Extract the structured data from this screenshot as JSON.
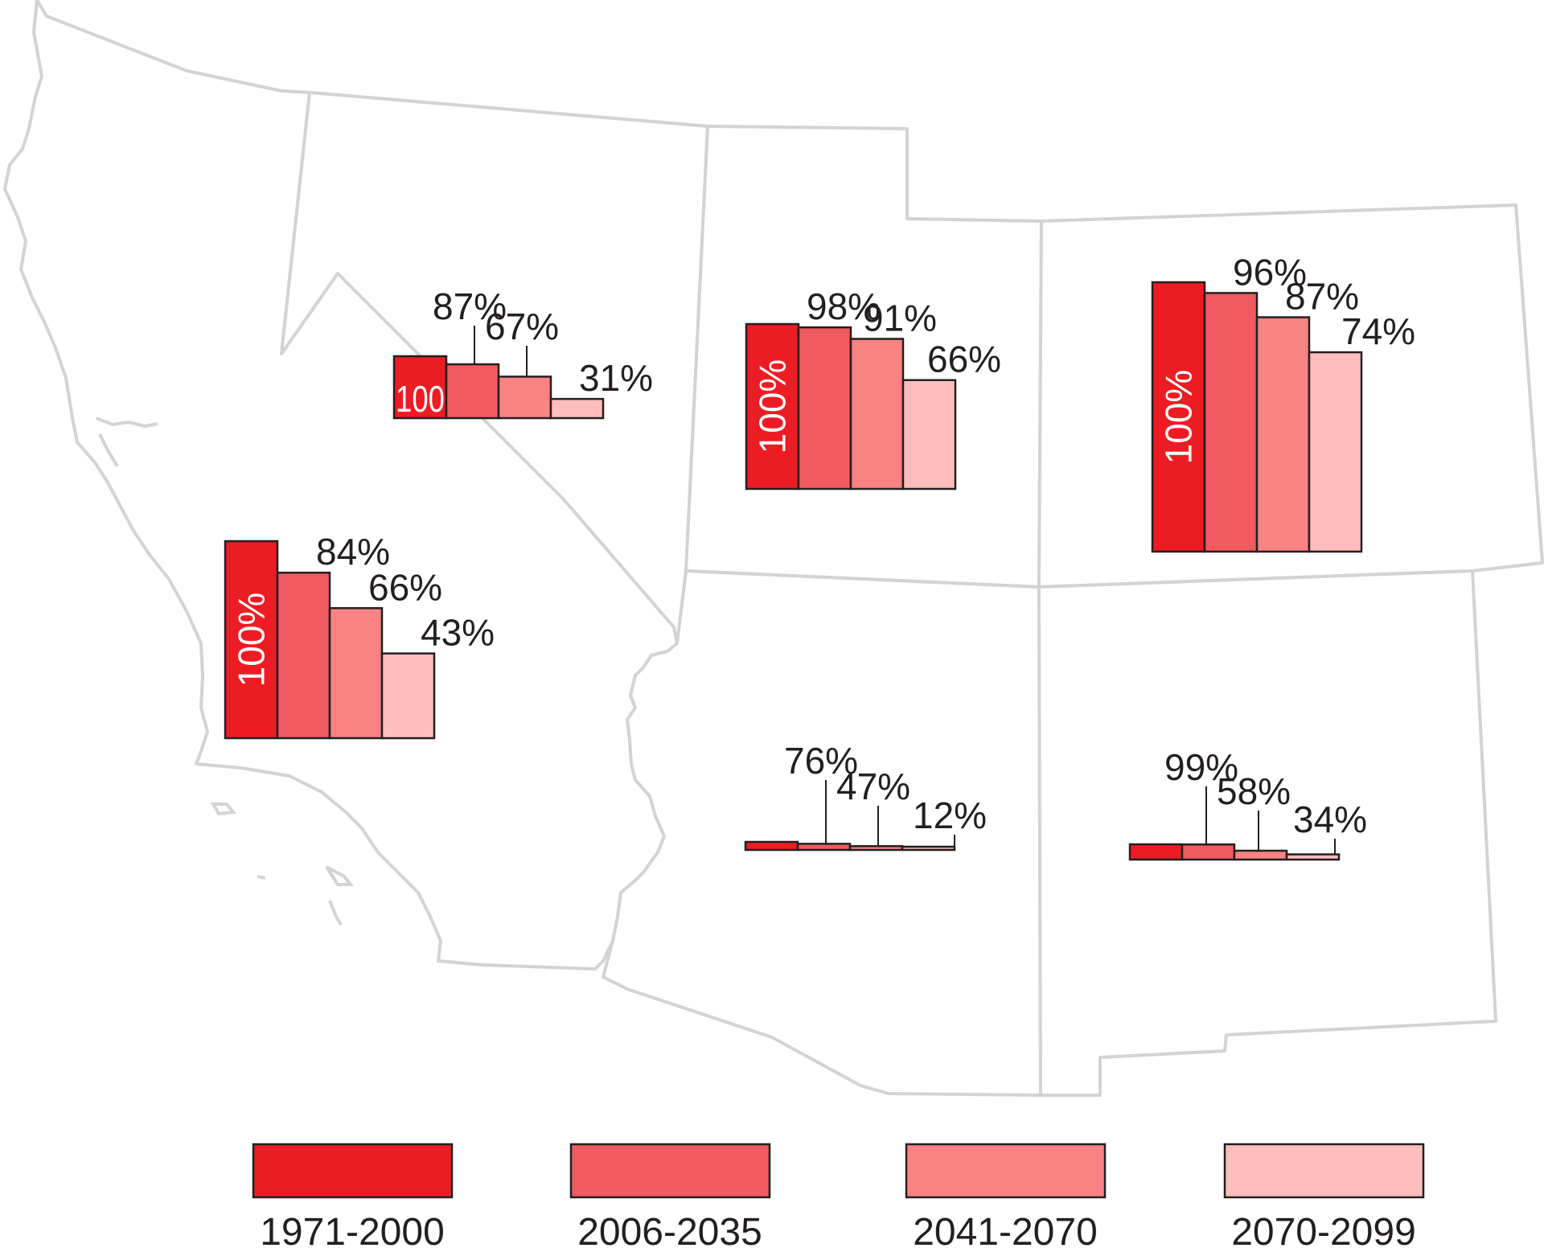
{
  "chart_data": {
    "type": "bar",
    "categories": [
      "1971-2000",
      "2006-2035",
      "2041-2070",
      "2070-2099"
    ],
    "colors": [
      "#ed1c24",
      "#f15a60",
      "#f98282",
      "#ffbdbd"
    ],
    "legend_position": "bottom",
    "regions": [
      {
        "values": [
          100,
          84,
          66,
          43
        ],
        "labels": [
          "100%",
          "84%",
          "66%",
          "43%"
        ]
      },
      {
        "values": [
          100,
          87,
          67,
          31
        ],
        "labels": [
          "100",
          "87%",
          "67%",
          "31%"
        ]
      },
      {
        "values": [
          100,
          98,
          91,
          66
        ],
        "labels": [
          "100%",
          "98%",
          "91%",
          "66%"
        ]
      },
      {
        "values": [
          100,
          96,
          87,
          74
        ],
        "labels": [
          "100%",
          "96%",
          "87%",
          "74%"
        ]
      },
      {
        "values": [
          100,
          76,
          47,
          12
        ],
        "labels": [
          "",
          "76%",
          "47%",
          "12%"
        ]
      },
      {
        "values": [
          100,
          99,
          58,
          34
        ],
        "labels": [
          "",
          "99%",
          "58%",
          "34%"
        ]
      }
    ]
  }
}
